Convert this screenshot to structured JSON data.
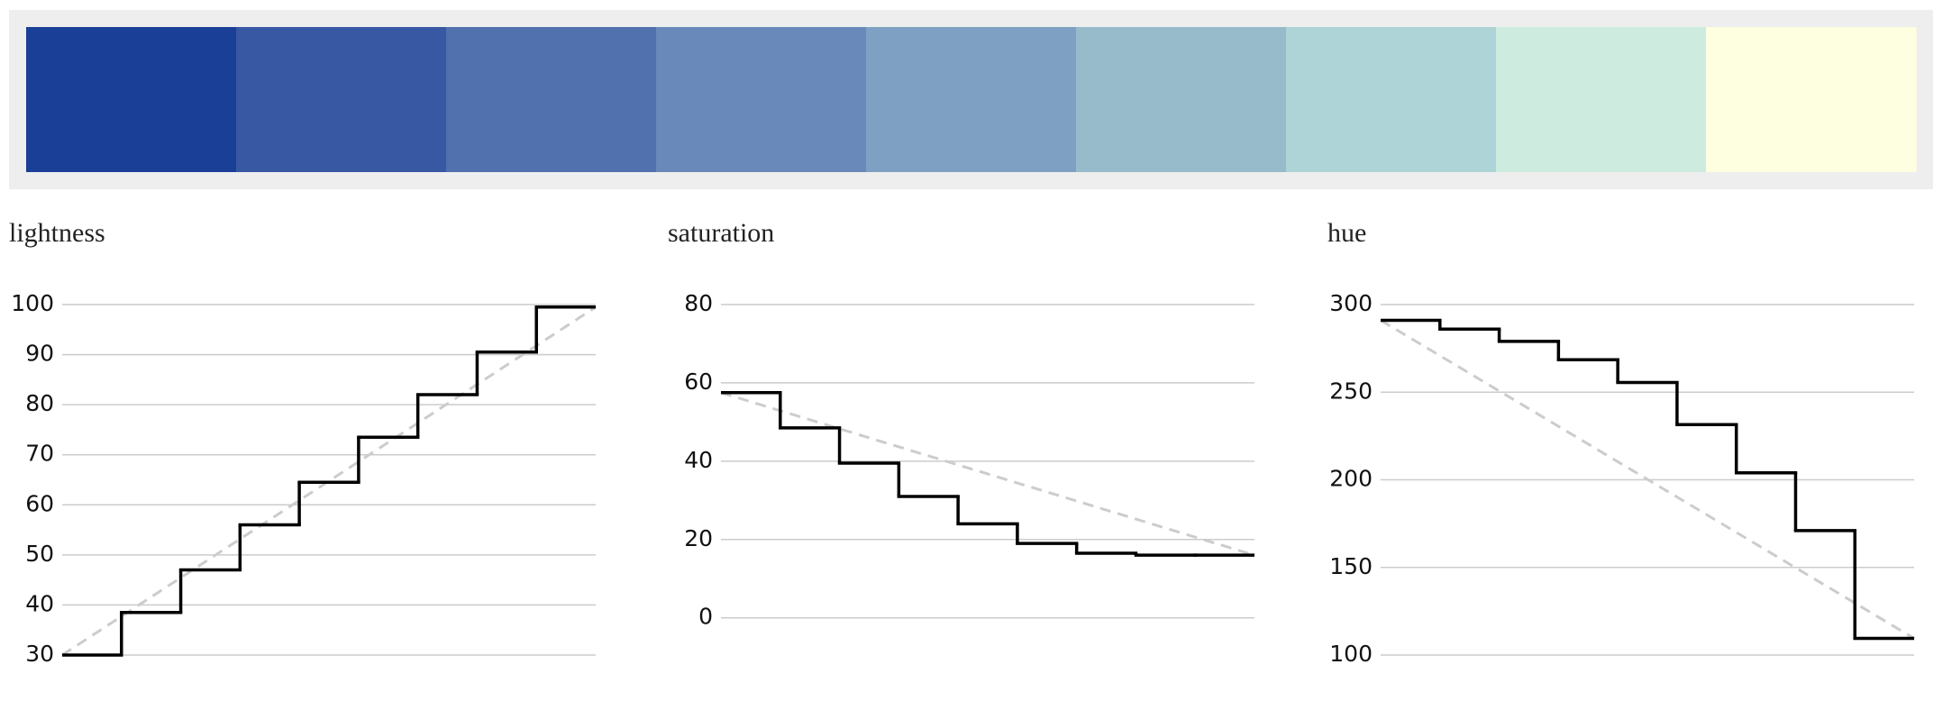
{
  "palette": [
    "#1a3f96",
    "#3858a3",
    "#5071ae",
    "#6889b9",
    "#7ea1c3",
    "#98bbcc",
    "#aed4d7",
    "#cdecdf",
    "#fefee0"
  ],
  "chart_data": [
    {
      "type": "step",
      "title": "lightness",
      "values": [
        30,
        38.5,
        47,
        56,
        64.5,
        73.5,
        82,
        90.5,
        99.5
      ],
      "color": "#000000",
      "reference_color": "#cccccc",
      "ylim": [
        30,
        100
      ],
      "yticks": [
        30,
        40,
        50,
        60,
        70,
        80,
        90,
        100
      ],
      "grid": true
    },
    {
      "type": "step",
      "title": "saturation",
      "values": [
        57.5,
        48.5,
        39.5,
        31,
        24,
        19,
        16.5,
        16,
        16
      ],
      "color": "#000000",
      "reference_color": "#cccccc",
      "ylim": [
        -9.5,
        80
      ],
      "yticks": [
        0,
        20,
        40,
        60,
        80
      ],
      "grid": true
    },
    {
      "type": "step",
      "title": "hue",
      "values": [
        291,
        286,
        279,
        268.5,
        255.5,
        231.5,
        204,
        171,
        109.5
      ],
      "color": "#000000",
      "reference_color": "#cccccc",
      "ylim": [
        100,
        300
      ],
      "yticks": [
        100,
        150,
        200,
        250,
        300
      ],
      "grid": true
    }
  ]
}
